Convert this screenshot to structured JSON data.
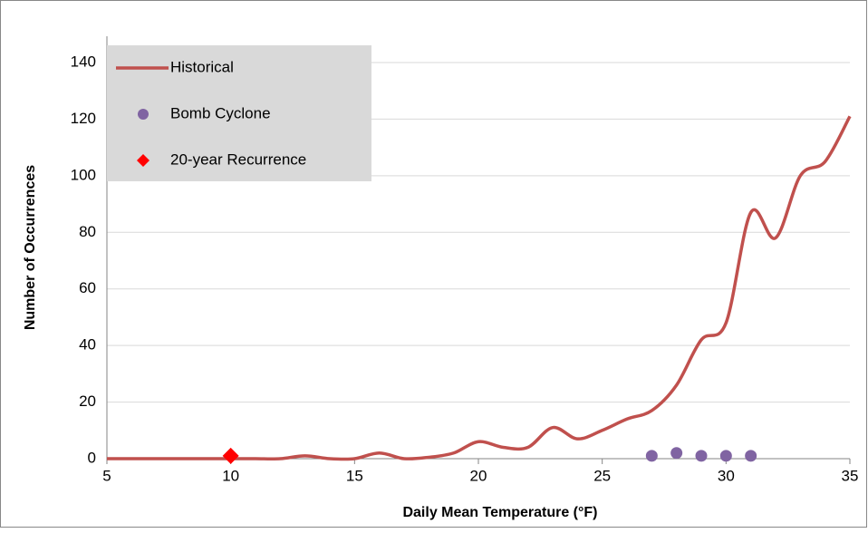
{
  "chart_data": {
    "type": "line",
    "xlabel": "Daily Mean Temperature (°F)",
    "ylabel": "Number of Occurrences",
    "xlim": [
      5,
      35
    ],
    "xticks": [
      5,
      10,
      15,
      20,
      25,
      30,
      35
    ],
    "ylim": [
      0,
      140
    ],
    "yticks": [
      0,
      20,
      40,
      60,
      80,
      100,
      120,
      140
    ],
    "grid": true,
    "legend": "upper left",
    "series": [
      {
        "name": "Historical",
        "color": "#c0504d",
        "style": "line",
        "x": [
          5,
          6,
          7,
          8,
          9,
          10,
          11,
          12,
          13,
          14,
          15,
          16,
          17,
          18,
          19,
          20,
          21,
          22,
          23,
          24,
          25,
          26,
          27,
          28,
          29,
          30,
          31,
          32,
          33,
          34,
          35
        ],
        "values": [
          0,
          0,
          0,
          0,
          0,
          0,
          0,
          0,
          1,
          0,
          0,
          2,
          0,
          0.5,
          2,
          6,
          4,
          4,
          11,
          7,
          10,
          14,
          17,
          26,
          42,
          48,
          87,
          78,
          100,
          105,
          121
        ]
      },
      {
        "name": "Bomb Cyclone",
        "color": "#8064a2",
        "style": "circle",
        "x": [
          27,
          28,
          29,
          30,
          31
        ],
        "values": [
          1,
          2,
          1,
          1,
          1
        ]
      },
      {
        "name": "20-year Recurrence",
        "color": "#ff0000",
        "style": "diamond",
        "x": [
          10
        ],
        "values": [
          1
        ]
      }
    ]
  }
}
